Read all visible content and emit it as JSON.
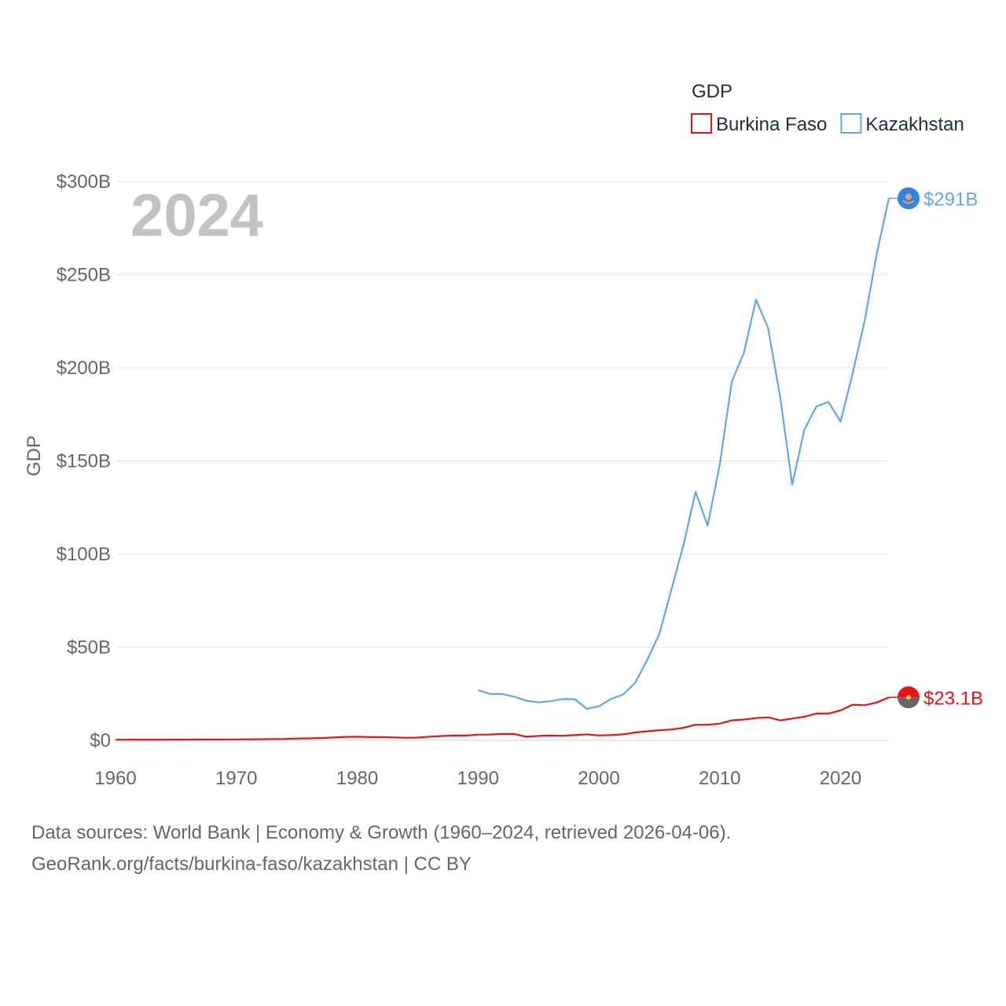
{
  "chart_data": {
    "type": "line",
    "title": "",
    "xlabel": "",
    "ylabel": "GDP",
    "xlim": [
      1960,
      2024
    ],
    "ylim": [
      0,
      300
    ],
    "unit": "B USD",
    "year_label": "2024",
    "x_ticks": [
      1960,
      1970,
      1980,
      1990,
      2000,
      2010,
      2020
    ],
    "x_tick_labels": [
      "1960",
      "1970",
      "1980",
      "1990",
      "2000",
      "2010",
      "2020"
    ],
    "y_ticks": [
      0,
      50,
      100,
      150,
      200,
      250,
      300
    ],
    "y_tick_labels": [
      "$0",
      "$50B",
      "$100B",
      "$150B",
      "$200B",
      "$250B",
      "$300B"
    ],
    "legend": {
      "title": "GDP",
      "position": "top-right"
    },
    "series": [
      {
        "name": "Burkina Faso",
        "color": "#ee1111",
        "end_label": "$23.1B",
        "x": [
          1960,
          1961,
          1962,
          1963,
          1964,
          1965,
          1966,
          1967,
          1968,
          1969,
          1970,
          1971,
          1972,
          1973,
          1974,
          1975,
          1976,
          1977,
          1978,
          1979,
          1980,
          1981,
          1982,
          1983,
          1984,
          1985,
          1986,
          1987,
          1988,
          1989,
          1990,
          1991,
          1992,
          1993,
          1994,
          1995,
          1996,
          1997,
          1998,
          1999,
          2000,
          2001,
          2002,
          2003,
          2004,
          2005,
          2006,
          2007,
          2008,
          2009,
          2010,
          2011,
          2012,
          2013,
          2014,
          2015,
          2016,
          2017,
          2018,
          2019,
          2020,
          2021,
          2022,
          2023,
          2024
        ],
        "values": [
          0.33,
          0.35,
          0.37,
          0.38,
          0.39,
          0.42,
          0.44,
          0.46,
          0.48,
          0.52,
          0.52,
          0.55,
          0.63,
          0.72,
          0.78,
          0.98,
          1.05,
          1.22,
          1.52,
          1.85,
          1.93,
          1.77,
          1.74,
          1.56,
          1.38,
          1.47,
          1.99,
          2.3,
          2.57,
          2.58,
          3.1,
          3.14,
          3.4,
          3.4,
          1.96,
          2.38,
          2.58,
          2.45,
          2.8,
          3.27,
          2.63,
          2.81,
          3.21,
          4.21,
          4.84,
          5.46,
          5.84,
          6.77,
          8.37,
          8.37,
          9.0,
          10.7,
          11.17,
          11.95,
          12.37,
          10.7,
          11.67,
          12.72,
          14.43,
          14.44,
          16.09,
          19.17,
          18.87,
          20.32,
          23.1
        ]
      },
      {
        "name": "Kazakhstan",
        "color": "#5ea8e8",
        "end_label": "$291B",
        "x": [
          1990,
          1991,
          1992,
          1993,
          1994,
          1995,
          1996,
          1997,
          1998,
          1999,
          2000,
          2001,
          2002,
          2003,
          2004,
          2005,
          2006,
          2007,
          2008,
          2009,
          2010,
          2011,
          2012,
          2013,
          2014,
          2015,
          2016,
          2017,
          2018,
          2019,
          2020,
          2021,
          2022,
          2023,
          2024
        ],
        "values": [
          26.9,
          24.9,
          24.9,
          23.4,
          21.3,
          20.4,
          21.0,
          22.2,
          22.1,
          16.9,
          18.3,
          22.2,
          24.6,
          30.8,
          43.2,
          57.1,
          81.0,
          104.8,
          133.4,
          115.3,
          148.0,
          192.6,
          208.0,
          236.6,
          221.4,
          184.4,
          137.3,
          166.8,
          179.3,
          181.7,
          171.1,
          197.1,
          225.5,
          261.4,
          291.0
        ]
      }
    ]
  },
  "footer": {
    "line1": "Data sources: World Bank | Economy & Growth (1960–2024, retrieved 2026-04-06).",
    "line2": "GeoRank.org/facts/burkina-faso/kazakhstan | CC BY"
  }
}
